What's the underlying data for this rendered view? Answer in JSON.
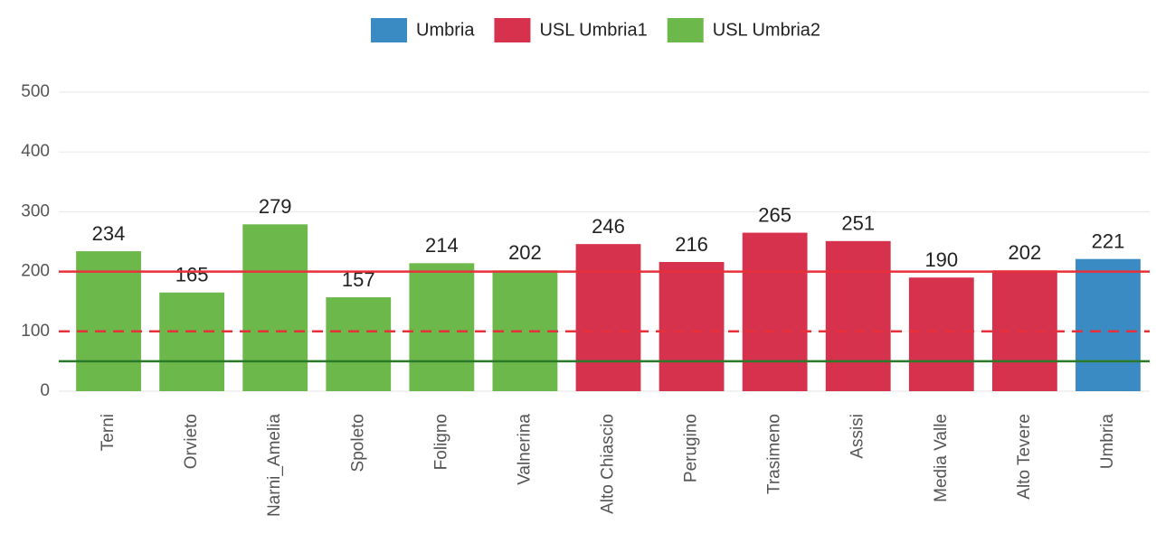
{
  "chart_data": {
    "type": "bar",
    "categories": [
      "Terni",
      "Orvieto",
      "Narni_Amelia",
      "Spoleto",
      "Foligno",
      "Valnerina",
      "Alto Chiascio",
      "Perugino",
      "Trasimeno",
      "Assisi",
      "Media Valle",
      "Alto Tevere",
      "Umbria"
    ],
    "series": [
      {
        "name": "Umbria",
        "color": "#3a8ac4",
        "values": [
          null,
          null,
          null,
          null,
          null,
          null,
          null,
          null,
          null,
          null,
          null,
          null,
          221
        ]
      },
      {
        "name": "USL Umbria1",
        "color": "#d6314d",
        "values": [
          null,
          null,
          null,
          null,
          null,
          null,
          246,
          216,
          265,
          251,
          190,
          202,
          null
        ]
      },
      {
        "name": "USL Umbria2",
        "color": "#6db84b",
        "values": [
          234,
          165,
          279,
          157,
          214,
          202,
          null,
          null,
          null,
          null,
          null,
          null,
          null
        ]
      }
    ],
    "ylim": [
      0,
      500
    ],
    "yticks": [
      0,
      100,
      200,
      300,
      400,
      500
    ],
    "grid": true,
    "legend": "top",
    "reference_lines": [
      {
        "value": 200,
        "color": "#e8303a",
        "style": "solid"
      },
      {
        "value": 100,
        "color": "#e8303a",
        "style": "dashed"
      },
      {
        "value": 50,
        "color": "#2a7a2a",
        "style": "solid"
      }
    ]
  }
}
